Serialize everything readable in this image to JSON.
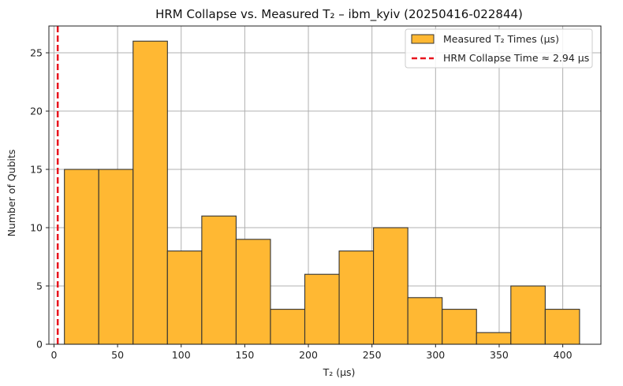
{
  "chart_data": {
    "type": "bar",
    "title": "HRM Collapse vs. Measured T₂ – ibm_kyiv (20250416-022844)",
    "xlabel": "T₂ (µs)",
    "ylabel": "Number of Qubits",
    "xlim": [
      -4,
      430
    ],
    "ylim": [
      0,
      27.3
    ],
    "xticks": [
      0,
      50,
      100,
      150,
      200,
      250,
      300,
      350,
      400
    ],
    "yticks": [
      0,
      5,
      10,
      15,
      20,
      25
    ],
    "grid": true,
    "legend_position": "top-right",
    "bin_edges": [
      8.2,
      35.2,
      62.2,
      89.2,
      116.2,
      143.2,
      170.2,
      197.2,
      224.2,
      251.2,
      278.2,
      305.2,
      332.2,
      359.2,
      386.2,
      413.2
    ],
    "counts": [
      15,
      15,
      26,
      8,
      11,
      9,
      3,
      6,
      8,
      10,
      4,
      3,
      1,
      5,
      3
    ],
    "series_name": "Measured T₂ Times (µs)",
    "bar_color": "#ffb833",
    "bar_edge_color": "#333333",
    "reference_line": {
      "x": 2.94,
      "label": "HRM Collapse Time ≈ 2.94 µs",
      "color": "#e8141e"
    }
  }
}
